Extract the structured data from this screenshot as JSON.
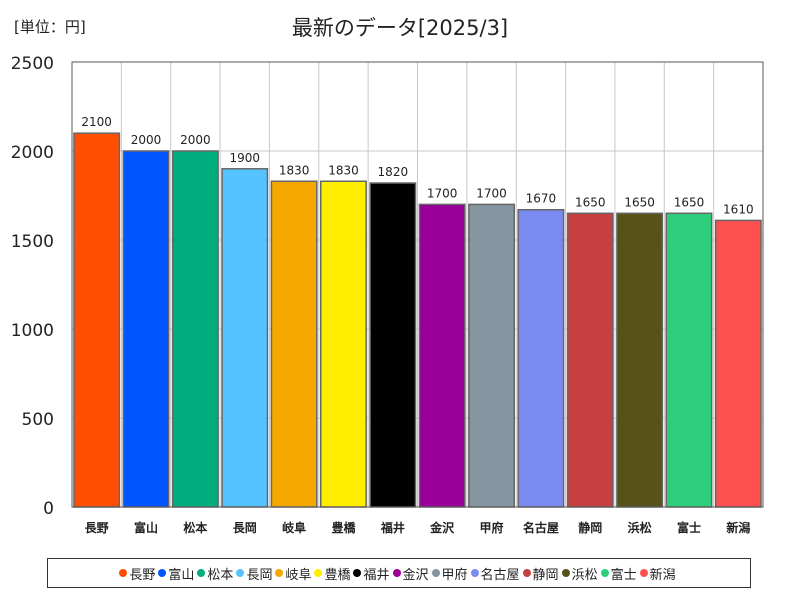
{
  "chart_data": {
    "type": "bar",
    "title": "最新のデータ[2025/3]",
    "unit_label": "[単位：円]",
    "categories": [
      "長野",
      "富山",
      "松本",
      "長岡",
      "岐阜",
      "豊橋",
      "福井",
      "金沢",
      "甲府",
      "名古屋",
      "静岡",
      "浜松",
      "富士",
      "新潟"
    ],
    "values": [
      2100,
      2000,
      2000,
      1900,
      1830,
      1830,
      1820,
      1700,
      1700,
      1670,
      1650,
      1650,
      1650,
      1610
    ],
    "colors": [
      "#ff4e00",
      "#0055ff",
      "#00ad7c",
      "#55c3ff",
      "#f5a800",
      "#ffee00",
      "#000000",
      "#990099",
      "#8595a1",
      "#7b8af0",
      "#c64040",
      "#575218",
      "#2ecf7c",
      "#ff5050"
    ],
    "ylim": [
      0,
      2500
    ],
    "yticks": [
      0,
      500,
      1000,
      1500,
      2000,
      2500
    ],
    "grid": true,
    "legend_position": "bottom"
  }
}
